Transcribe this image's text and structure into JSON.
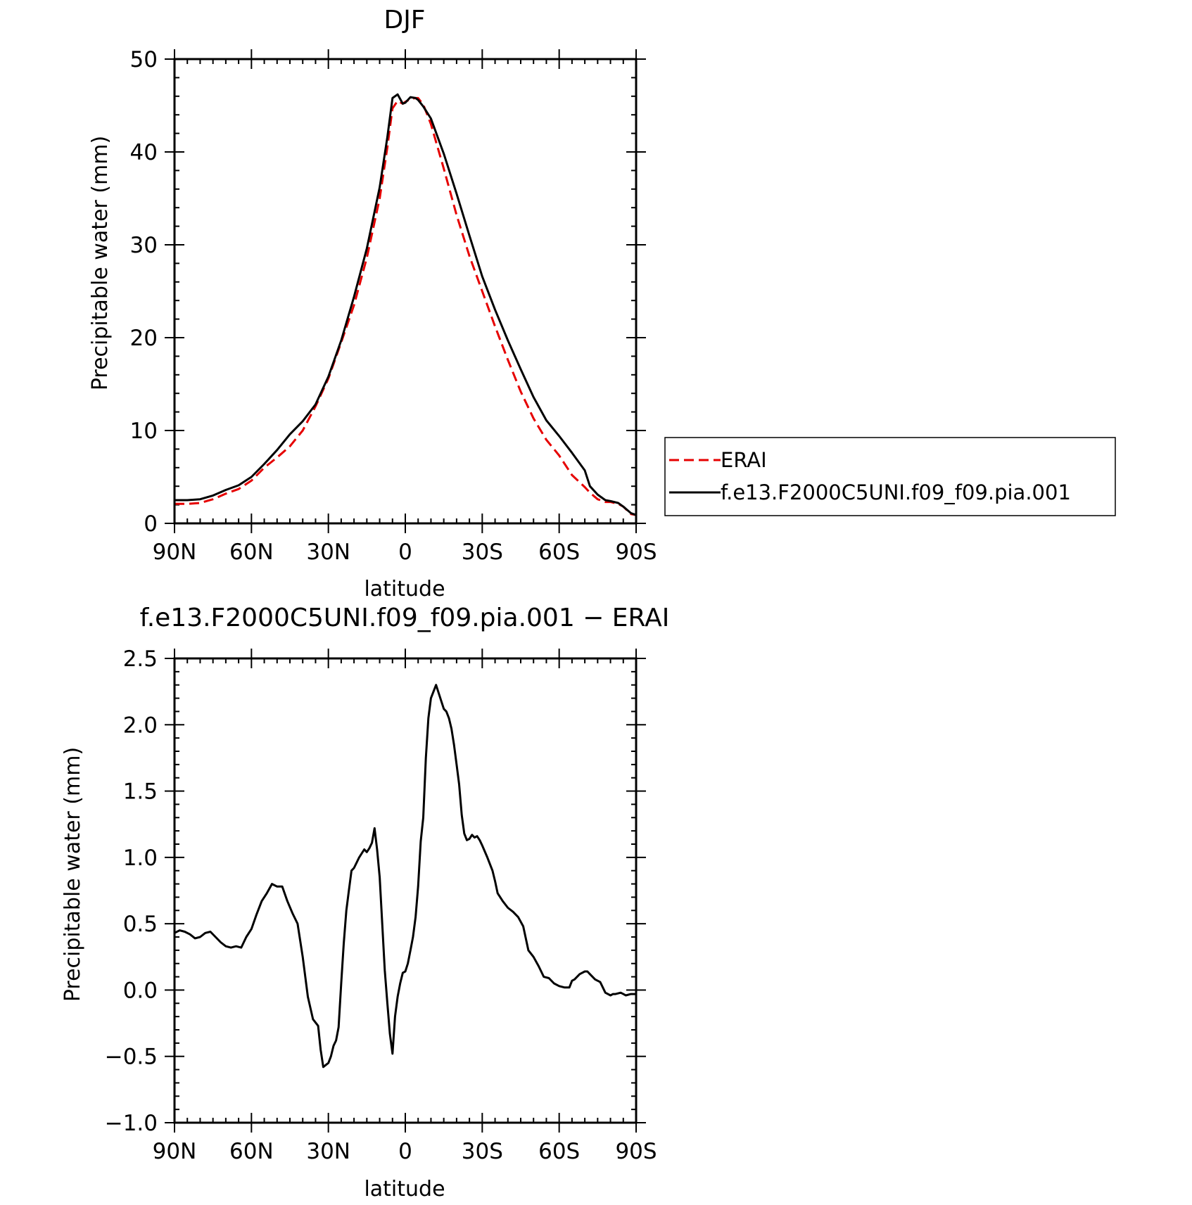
{
  "chart_data": [
    {
      "type": "line",
      "title": "DJF",
      "xlabel": "latitude",
      "ylabel": "Precipitable water (mm)",
      "xlim": [
        90,
        -90
      ],
      "ylim": [
        0,
        50
      ],
      "x_ticks": [
        {
          "value": 90,
          "label": "90N"
        },
        {
          "value": 60,
          "label": "60N"
        },
        {
          "value": 30,
          "label": "30N"
        },
        {
          "value": 0,
          "label": "0"
        },
        {
          "value": -30,
          "label": "30S"
        },
        {
          "value": -60,
          "label": "60S"
        },
        {
          "value": -90,
          "label": "90S"
        }
      ],
      "y_ticks": [
        {
          "value": 0,
          "label": "0"
        },
        {
          "value": 10,
          "label": "10"
        },
        {
          "value": 20,
          "label": "20"
        },
        {
          "value": 30,
          "label": "30"
        },
        {
          "value": 40,
          "label": "40"
        },
        {
          "value": 50,
          "label": "50"
        }
      ],
      "legend_position": "right",
      "series": [
        {
          "name": "ERAI",
          "color": "#e60000",
          "dash": true,
          "x": [
            90,
            85,
            80,
            75,
            70,
            65,
            60,
            55,
            50,
            45,
            40,
            35,
            30,
            25,
            20,
            15,
            10,
            7,
            5,
            3,
            1,
            0,
            -2,
            -4,
            -5,
            -7,
            -10,
            -15,
            -20,
            -25,
            -30,
            -35,
            -40,
            -45,
            -50,
            -55,
            -60,
            -65,
            -70,
            -72,
            -75,
            -78,
            -80,
            -83,
            -85,
            -88,
            -90
          ],
          "y": [
            2.1,
            2.1,
            2.2,
            2.6,
            3.2,
            3.7,
            4.6,
            6.0,
            7.1,
            8.3,
            10.0,
            12.6,
            15.6,
            19.5,
            23.5,
            28.6,
            35.0,
            40.5,
            44.7,
            45.5,
            45.2,
            45.4,
            45.7,
            45.8,
            45.8,
            45.1,
            43.0,
            38.2,
            33.2,
            28.8,
            25.0,
            21.2,
            17.6,
            14.2,
            11.3,
            9.0,
            7.3,
            5.2,
            3.9,
            3.3,
            2.6,
            2.3,
            2.3,
            2.1,
            1.8,
            1.0,
            0.9
          ]
        },
        {
          "name": "f.e13.F2000C5UNI.f09_f09.pia.001",
          "color": "#000000",
          "dash": false,
          "x": [
            90,
            85,
            80,
            75,
            70,
            65,
            60,
            55,
            50,
            45,
            40,
            35,
            30,
            25,
            20,
            15,
            10,
            7,
            5,
            3,
            1,
            0,
            -2,
            -4,
            -5,
            -7,
            -10,
            -15,
            -20,
            -25,
            -30,
            -35,
            -40,
            -45,
            -50,
            -55,
            -60,
            -65,
            -70,
            -72,
            -75,
            -78,
            -80,
            -83,
            -85,
            -88,
            -90
          ],
          "y": [
            2.5,
            2.5,
            2.6,
            3.0,
            3.6,
            4.1,
            5.0,
            6.4,
            7.9,
            9.6,
            11.0,
            12.8,
            15.8,
            19.7,
            24.4,
            29.6,
            36.2,
            41.6,
            45.8,
            46.2,
            45.2,
            45.3,
            45.9,
            45.8,
            45.6,
            44.9,
            43.6,
            39.8,
            35.5,
            31.0,
            26.6,
            23.0,
            19.7,
            16.6,
            13.6,
            11.1,
            9.4,
            7.6,
            5.7,
            4.0,
            3.1,
            2.5,
            2.4,
            2.2,
            1.8,
            1.1,
            0.9
          ]
        }
      ]
    },
    {
      "type": "line",
      "title": "f.e13.F2000C5UNI.f09_f09.pia.001 − ERAI",
      "xlabel": "latitude",
      "ylabel": "Precipitable water (mm)",
      "xlim": [
        90,
        -90
      ],
      "ylim": [
        -1.0,
        2.5
      ],
      "x_ticks": [
        {
          "value": 90,
          "label": "90N"
        },
        {
          "value": 60,
          "label": "60N"
        },
        {
          "value": 30,
          "label": "30N"
        },
        {
          "value": 0,
          "label": "0"
        },
        {
          "value": -30,
          "label": "30S"
        },
        {
          "value": -60,
          "label": "60S"
        },
        {
          "value": -90,
          "label": "90S"
        }
      ],
      "y_ticks": [
        {
          "value": -1.0,
          "label": "−1.0"
        },
        {
          "value": -0.5,
          "label": "−0.5"
        },
        {
          "value": 0.0,
          "label": "0.0"
        },
        {
          "value": 0.5,
          "label": "0.5"
        },
        {
          "value": 1.0,
          "label": "1.0"
        },
        {
          "value": 1.5,
          "label": "1.5"
        },
        {
          "value": 2.0,
          "label": "2.0"
        },
        {
          "value": 2.5,
          "label": "2.5"
        }
      ],
      "series": [
        {
          "color": "#000000",
          "dash": false,
          "x": [
            90,
            88,
            86,
            84,
            82,
            80,
            78,
            76,
            74,
            72,
            70,
            68,
            66,
            64,
            62,
            60,
            58,
            56,
            54,
            52,
            50,
            48,
            46,
            44,
            42,
            40,
            38,
            36,
            34,
            33,
            32,
            30,
            29,
            28,
            27,
            26,
            25,
            24,
            23,
            22,
            21,
            20,
            18,
            16,
            15,
            14,
            13,
            12,
            11,
            10,
            9,
            8,
            7,
            6,
            5,
            4,
            3,
            2,
            1,
            0,
            -1,
            -2,
            -3,
            -4,
            -5,
            -6,
            -7,
            -8,
            -9,
            -10,
            -12,
            -14,
            -15,
            -16,
            -17,
            -18,
            -19,
            -20,
            -21,
            -22,
            -23,
            -24,
            -25,
            -26,
            -27,
            -28,
            -29,
            -30,
            -32,
            -34,
            -35,
            -36,
            -38,
            -40,
            -42,
            -44,
            -46,
            -48,
            -50,
            -52,
            -54,
            -56,
            -58,
            -60,
            -62,
            -64,
            -65,
            -66,
            -68,
            -70,
            -71,
            -72,
            -74,
            -76,
            -78,
            -80,
            -81,
            -82,
            -84,
            -85,
            -86,
            -88,
            -89,
            -90
          ],
          "y": [
            0.43,
            0.45,
            0.44,
            0.42,
            0.39,
            0.4,
            0.43,
            0.44,
            0.4,
            0.36,
            0.33,
            0.32,
            0.33,
            0.32,
            0.4,
            0.46,
            0.57,
            0.67,
            0.73,
            0.8,
            0.78,
            0.78,
            0.67,
            0.58,
            0.5,
            0.25,
            -0.05,
            -0.22,
            -0.27,
            -0.45,
            -0.58,
            -0.55,
            -0.5,
            -0.42,
            -0.38,
            -0.28,
            0.05,
            0.35,
            0.6,
            0.75,
            0.9,
            0.92,
            1.0,
            1.06,
            1.04,
            1.07,
            1.11,
            1.22,
            1.06,
            0.85,
            0.5,
            0.15,
            -0.1,
            -0.33,
            -0.48,
            -0.2,
            -0.05,
            0.05,
            0.13,
            0.14,
            0.2,
            0.3,
            0.4,
            0.55,
            0.78,
            1.12,
            1.3,
            1.75,
            2.05,
            2.2,
            2.3,
            2.18,
            2.12,
            2.1,
            2.05,
            1.97,
            1.85,
            1.7,
            1.55,
            1.32,
            1.18,
            1.13,
            1.14,
            1.17,
            1.15,
            1.16,
            1.13,
            1.09,
            1.0,
            0.9,
            0.82,
            0.73,
            0.67,
            0.62,
            0.59,
            0.55,
            0.48,
            0.3,
            0.25,
            0.18,
            0.1,
            0.09,
            0.05,
            0.03,
            0.02,
            0.02,
            0.07,
            0.08,
            0.12,
            0.14,
            0.14,
            0.12,
            0.08,
            0.06,
            -0.02,
            -0.04,
            -0.03,
            -0.03,
            -0.02,
            -0.03,
            -0.04,
            -0.03,
            -0.03,
            -0.03
          ]
        }
      ]
    }
  ]
}
